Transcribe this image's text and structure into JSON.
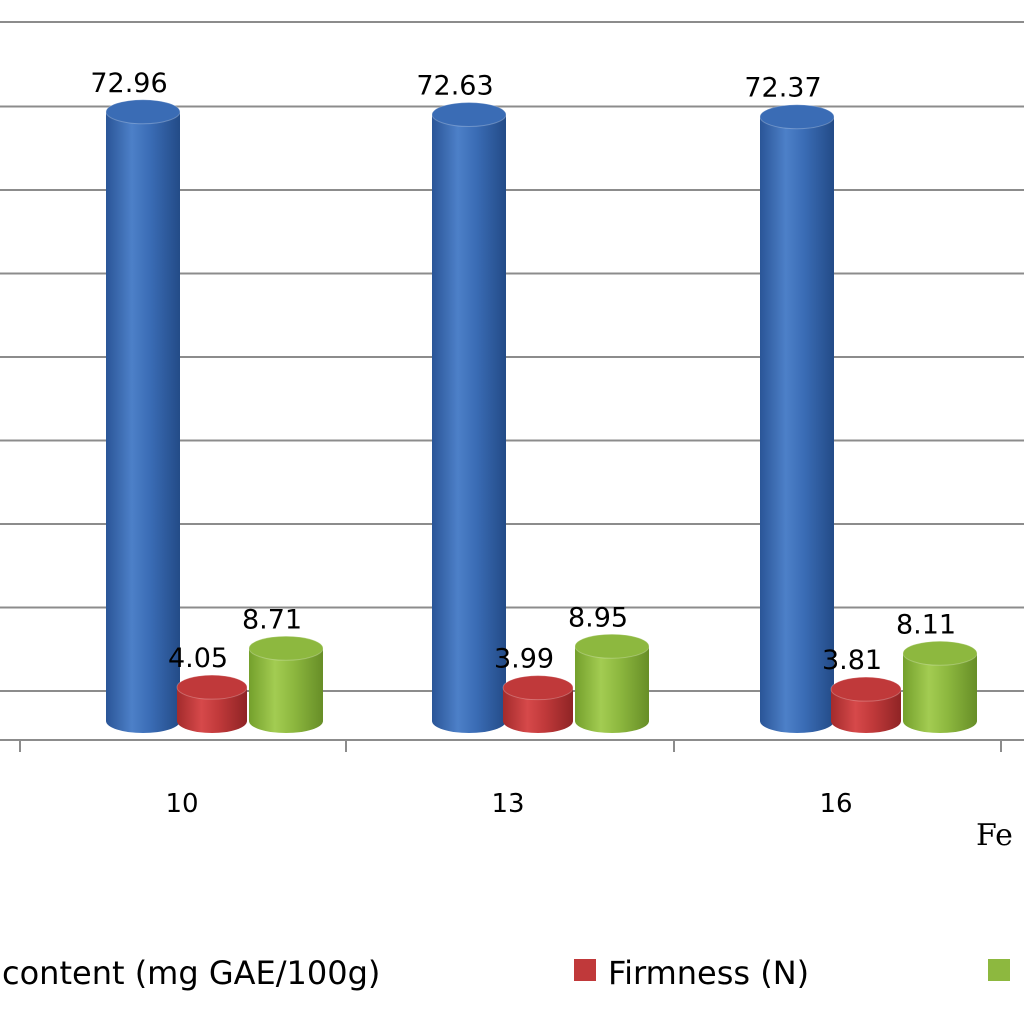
{
  "chart_data": {
    "type": "bar",
    "style": "3d-cylinder",
    "categories": [
      "10",
      "13",
      "16"
    ],
    "series": [
      {
        "name": "content (mg GAE/100g)",
        "color": "#3a6cb5",
        "values": [
          72.96,
          72.63,
          72.37
        ],
        "labels": [
          "72.96",
          "72.63",
          "72.37"
        ]
      },
      {
        "name": "Firmness (N)",
        "color": "#c0393a",
        "values": [
          4.05,
          3.99,
          3.81
        ],
        "labels": [
          "4.05",
          "3.99",
          "3.81"
        ]
      },
      {
        "name": "",
        "color": "#8db83f",
        "values": [
          8.71,
          8.95,
          8.11
        ],
        "labels": [
          "8.71",
          "8.95",
          "8.11"
        ]
      }
    ],
    "xlabel": "Fe",
    "ylim": [
      0,
      80
    ],
    "grid": true,
    "legend_position": "bottom"
  }
}
